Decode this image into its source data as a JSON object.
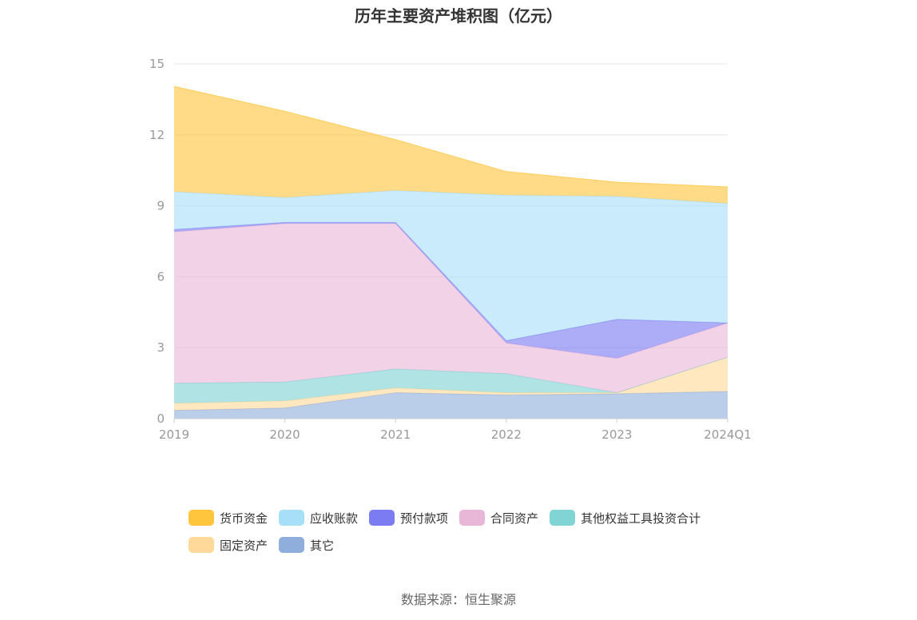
{
  "chart_data": {
    "type": "area",
    "stacked": true,
    "title": "历年主要资产堆积图（亿元）",
    "categories": [
      "2019",
      "2020",
      "2021",
      "2022",
      "2023",
      "2024Q1"
    ],
    "ylim": [
      0,
      15
    ],
    "yticks": [
      "0",
      "3",
      "6",
      "9",
      "12",
      "15"
    ],
    "grid": true,
    "legend_position": "bottom",
    "series": [
      {
        "name": "其它",
        "color": "#8FAEDB",
        "values": [
          0.35,
          0.45,
          1.1,
          1.0,
          1.05,
          1.15
        ]
      },
      {
        "name": "固定资产",
        "color": "#FFD99A",
        "values": [
          0.3,
          0.3,
          0.2,
          0.1,
          0.05,
          1.45
        ]
      },
      {
        "name": "其他权益工具投资合计",
        "color": "#80D4D4",
        "values": [
          0.85,
          0.8,
          0.8,
          0.8,
          0.0,
          0.0
        ]
      },
      {
        "name": "合同资产",
        "color": "#E8B7D8",
        "values": [
          6.4,
          6.7,
          6.15,
          1.3,
          1.45,
          1.45
        ]
      },
      {
        "name": "预付款项",
        "color": "#7B7BF2",
        "values": [
          0.1,
          0.05,
          0.05,
          0.1,
          1.65,
          0.0
        ]
      },
      {
        "name": "应收账款",
        "color": "#A8DFF8",
        "values": [
          1.6,
          1.05,
          1.35,
          6.15,
          5.2,
          5.05
        ]
      },
      {
        "name": "货币资金",
        "color": "#FFC53D",
        "values": [
          4.45,
          3.65,
          2.15,
          1.0,
          0.6,
          0.7
        ]
      }
    ],
    "legend_order": [
      "货币资金",
      "应收账款",
      "预付款项",
      "合同资产",
      "其他权益工具投资合计",
      "固定资产",
      "其它"
    ]
  },
  "source": "数据来源：恒生聚源"
}
